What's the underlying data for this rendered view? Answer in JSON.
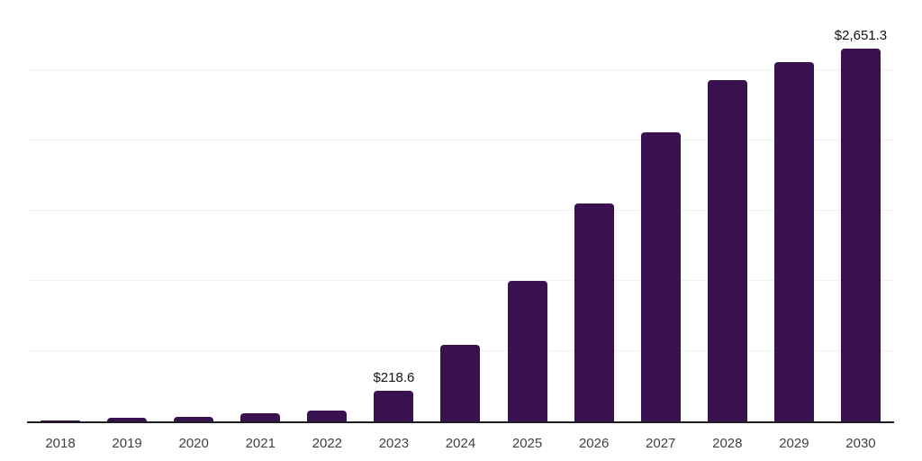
{
  "chart_data": {
    "type": "bar",
    "title": "",
    "xlabel": "",
    "ylabel": "",
    "ylim": [
      0,
      3000
    ],
    "gridline_values": [
      500,
      1000,
      1500,
      2000,
      2500,
      3000
    ],
    "grid": "horizontal light-gray lines, no y-axis tick labels",
    "legend_position": "none",
    "categories": [
      "2018",
      "2019",
      "2020",
      "2021",
      "2022",
      "2023",
      "2024",
      "2025",
      "2026",
      "2027",
      "2028",
      "2029",
      "2030"
    ],
    "values": [
      6,
      24,
      35,
      58,
      75,
      218.6,
      545,
      1000,
      1550,
      2060,
      2430,
      2560,
      2651.3
    ],
    "points": [
      {
        "year": "2018",
        "value": 6,
        "label": ""
      },
      {
        "year": "2019",
        "value": 24,
        "label": ""
      },
      {
        "year": "2020",
        "value": 35,
        "label": ""
      },
      {
        "year": "2021",
        "value": 58,
        "label": ""
      },
      {
        "year": "2022",
        "value": 75,
        "label": ""
      },
      {
        "year": "2023",
        "value": 218.6,
        "label": "$218.6"
      },
      {
        "year": "2024",
        "value": 545,
        "label": ""
      },
      {
        "year": "2025",
        "value": 1000,
        "label": ""
      },
      {
        "year": "2026",
        "value": 1550,
        "label": ""
      },
      {
        "year": "2027",
        "value": 2060,
        "label": ""
      },
      {
        "year": "2028",
        "value": 2430,
        "label": ""
      },
      {
        "year": "2029",
        "value": 2560,
        "label": ""
      },
      {
        "year": "2030",
        "value": 2651.3,
        "label": "$2,651.3"
      }
    ]
  },
  "colors": {
    "bar": "#39114F",
    "axis_line": "#1F1F23",
    "gridline": "#F0F0F0",
    "tick_label": "#404040",
    "data_label": "#111111",
    "background": "#FFFFFF"
  }
}
